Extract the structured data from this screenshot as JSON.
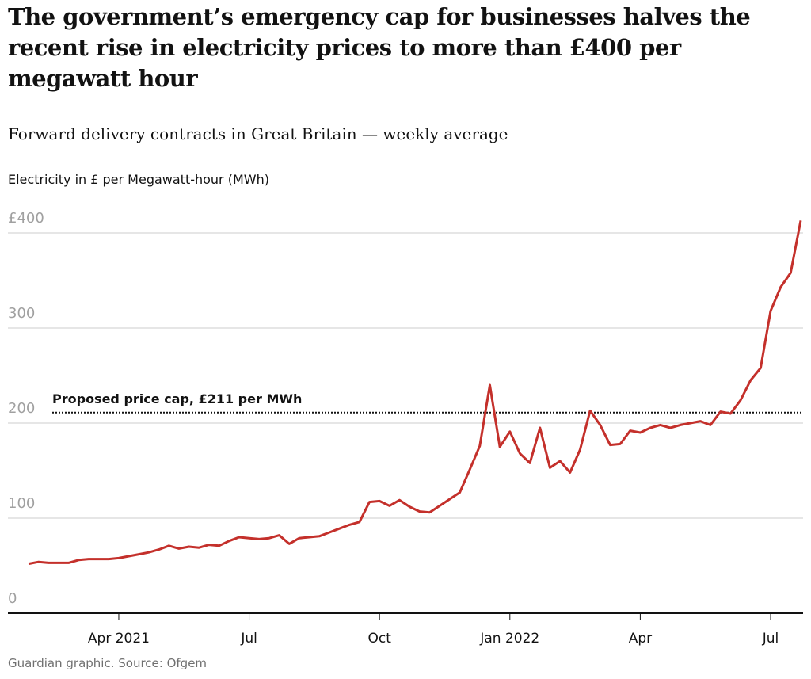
{
  "chart_data": {
    "type": "line",
    "title": "The government’s emergency cap for businesses halves the recent rise in electricity prices to more than £400 per megawatt hour",
    "subtitle": "Forward delivery contracts in Great Britain — weekly average",
    "y_label": "Electricity in £ per Megawatt-hour (MWh)",
    "source": "Guardian graphic. Source: Ofgem",
    "categories": [
      null,
      null,
      null,
      null,
      null,
      null,
      null,
      null,
      null,
      "Apr 2021",
      null,
      null,
      null,
      null,
      null,
      null,
      null,
      null,
      null,
      null,
      null,
      null,
      "Jul",
      null,
      null,
      null,
      null,
      null,
      null,
      null,
      null,
      null,
      null,
      null,
      null,
      "Oct",
      null,
      null,
      null,
      null,
      null,
      null,
      null,
      null,
      null,
      null,
      null,
      null,
      "Jan 2022",
      null,
      null,
      null,
      null,
      null,
      null,
      null,
      null,
      null,
      null,
      null,
      null,
      "Apr",
      null,
      null,
      null,
      null,
      null,
      null,
      null,
      null,
      null,
      null,
      null,
      null,
      "Jul",
      null,
      null,
      null
    ],
    "series": [
      {
        "name": "Electricity price",
        "color": "#c4302b",
        "values": [
          52,
          54,
          53,
          53,
          53,
          56,
          57,
          57,
          57,
          58,
          60,
          62,
          64,
          67,
          71,
          68,
          70,
          69,
          72,
          71,
          76,
          80,
          79,
          78,
          79,
          82,
          73,
          79,
          80,
          81,
          85,
          89,
          93,
          96,
          117,
          118,
          113,
          119,
          112,
          107,
          106,
          113,
          120,
          127,
          151,
          176,
          240,
          175,
          191,
          168,
          158,
          195,
          153,
          160,
          148,
          172,
          213,
          198,
          177,
          178,
          192,
          190,
          195,
          198,
          195,
          198,
          200,
          202,
          198,
          212,
          210,
          224,
          245,
          258,
          318,
          343,
          358,
          413
        ]
      }
    ],
    "reference_line": {
      "value": 211,
      "label": "Proposed price cap, £211 per MWh"
    },
    "ylim": [
      0,
      420
    ],
    "yticks": [
      0,
      100,
      200,
      300,
      {
        "value": 400,
        "label": "£400"
      }
    ],
    "grid": true
  }
}
